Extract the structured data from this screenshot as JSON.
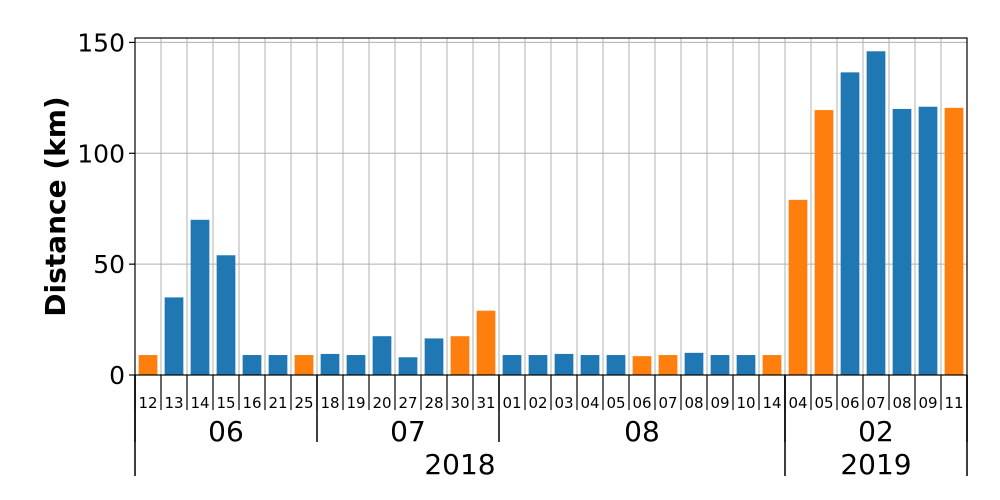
{
  "chart_data": {
    "type": "bar",
    "ylabel": "Distance (km)",
    "ylim": [
      0,
      152
    ],
    "yticks": [
      0,
      50,
      100,
      150
    ],
    "grid": true,
    "colors": {
      "blue": "#1f77b4",
      "orange": "#ff7f0e"
    },
    "categories": [
      "12",
      "13",
      "14",
      "15",
      "16",
      "21",
      "25",
      "18",
      "19",
      "20",
      "27",
      "28",
      "30",
      "31",
      "01",
      "02",
      "03",
      "04",
      "05",
      "06",
      "07",
      "08",
      "09",
      "10",
      "14",
      "04",
      "05",
      "06",
      "07",
      "08",
      "09",
      "11"
    ],
    "values": [
      9,
      35,
      70,
      54,
      9,
      9,
      9,
      9.5,
      9,
      17.5,
      8,
      16.5,
      17.5,
      29,
      9,
      9,
      9.5,
      9,
      9,
      8.5,
      9,
      10,
      9,
      9,
      9,
      79,
      119.5,
      136.5,
      146,
      120,
      121,
      120.5
    ],
    "bar_colors": [
      "orange",
      "blue",
      "blue",
      "blue",
      "blue",
      "blue",
      "orange",
      "blue",
      "blue",
      "blue",
      "blue",
      "blue",
      "orange",
      "orange",
      "blue",
      "blue",
      "blue",
      "blue",
      "blue",
      "orange",
      "orange",
      "blue",
      "blue",
      "blue",
      "orange",
      "orange",
      "orange",
      "blue",
      "blue",
      "blue",
      "blue",
      "orange"
    ],
    "months": [
      {
        "label": "06",
        "count": 7
      },
      {
        "label": "07",
        "count": 7
      },
      {
        "label": "08",
        "count": 11
      },
      {
        "label": "02",
        "count": 7
      }
    ],
    "years": [
      {
        "label": "2018",
        "count": 25
      },
      {
        "label": "2019",
        "count": 7
      }
    ]
  }
}
